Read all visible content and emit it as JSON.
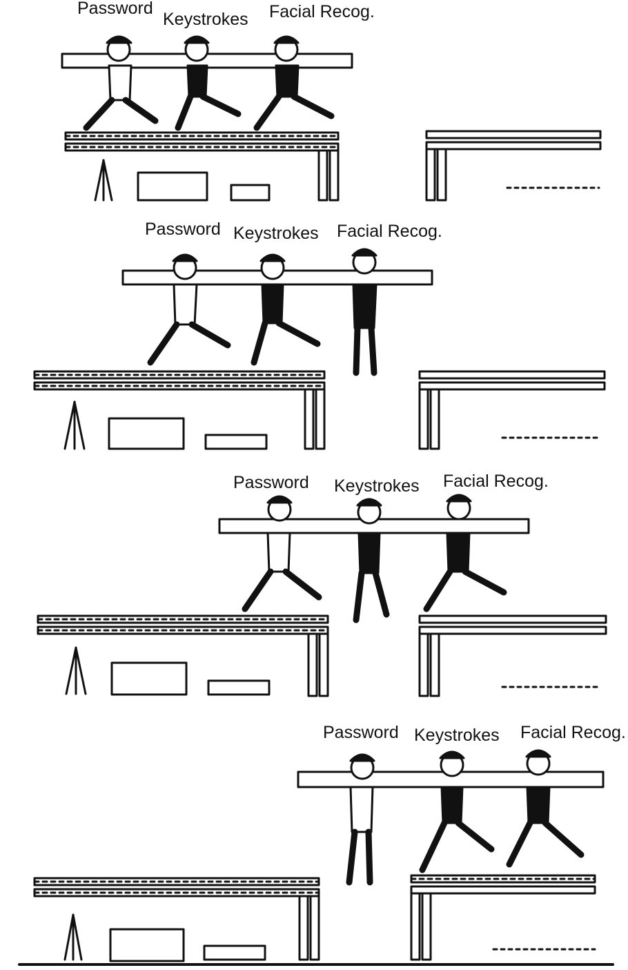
{
  "panels": [
    {
      "labels": [
        "Password",
        "Keystrokes",
        "Facial Recog."
      ]
    },
    {
      "labels": [
        "Password",
        "Keystrokes",
        "Facial Recog."
      ]
    },
    {
      "labels": [
        "Password",
        "Keystrokes",
        "Facial Recog."
      ]
    },
    {
      "labels": [
        "Password",
        "Keystrokes",
        "Facial Recog."
      ]
    }
  ],
  "colors": {
    "ink": "#111111",
    "paper": "#ffffff"
  },
  "icons": [
    "steel-girder",
    "construction-worker",
    "wooden-plank",
    "surveyor-tripod"
  ]
}
